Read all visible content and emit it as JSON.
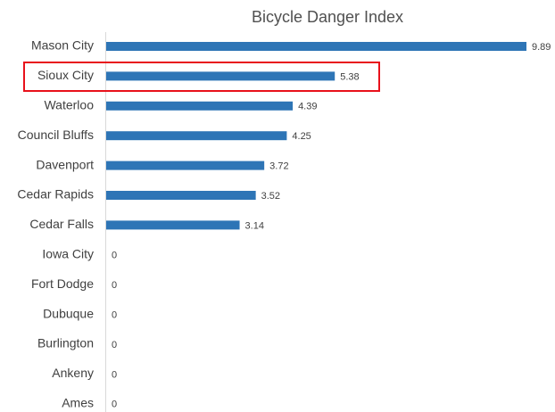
{
  "chart_data": {
    "type": "bar",
    "orientation": "horizontal",
    "title": "Bicycle Danger Index",
    "categories": [
      "Mason City",
      "Sioux City",
      "Waterloo",
      "Council Bluffs",
      "Davenport",
      "Cedar Rapids",
      "Cedar Falls",
      "Iowa City",
      "Fort Dodge",
      "Dubuque",
      "Burlington",
      "Ankeny",
      "Ames"
    ],
    "values": [
      9.89,
      5.38,
      4.39,
      4.25,
      3.72,
      3.52,
      3.14,
      0,
      0,
      0,
      0,
      0,
      0
    ],
    "color": "#2e75b6"
  }
}
